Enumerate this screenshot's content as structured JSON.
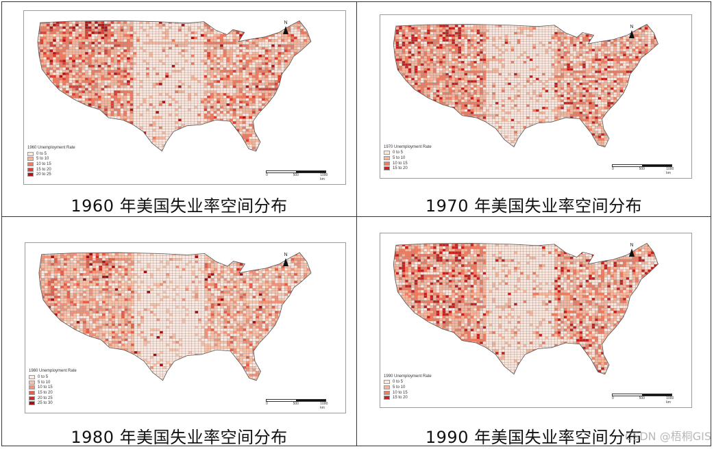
{
  "panels": [
    {
      "caption": "1960 年美国失业率空间分布",
      "legend_title": "1960 Unemployment Rate",
      "classes": [
        "0 to 5",
        "5 to 10",
        "10 to 15",
        "15 to 20",
        "20 to 25"
      ],
      "class_colors": [
        "#fde6db",
        "#f7b59c",
        "#ef7b60",
        "#de3f31",
        "#b31418"
      ],
      "north_label": "N",
      "scale_labels": [
        "0",
        "500",
        "1000 km"
      ]
    },
    {
      "caption": "1970 年美国失业率空间分布",
      "legend_title": "1970 Unemployment Rate",
      "classes": [
        "0 to 5",
        "5 to 10",
        "10 to 15",
        "15 to 20"
      ],
      "class_colors": [
        "#fde6db",
        "#f7b59c",
        "#ef7b60",
        "#c8201e"
      ],
      "north_label": "N",
      "scale_labels": [
        "0",
        "500",
        "1000 km"
      ]
    },
    {
      "caption": "1980 年美国失业率空间分布",
      "legend_title": "1980 Unemployment Rate",
      "classes": [
        "0 to 5",
        "5 to 10",
        "10 to 15",
        "15 to 20",
        "20 to 25",
        "25 to 30"
      ],
      "class_colors": [
        "#fde9df",
        "#f9c2a9",
        "#f3937a",
        "#e85d48",
        "#d02a22",
        "#a50f15"
      ],
      "north_label": "N",
      "scale_labels": [
        "0",
        "500",
        "1000 km"
      ]
    },
    {
      "caption": "1990 年美国失业率空间分布",
      "legend_title": "1990 Unemployment Rate",
      "classes": [
        "0 to 5",
        "5 to 10",
        "10 to 15",
        "15 to 20"
      ],
      "class_colors": [
        "#fde6db",
        "#f7b59c",
        "#ef7b60",
        "#c8201e"
      ],
      "north_label": "N",
      "scale_labels": [
        "0",
        "500",
        "1000 km"
      ]
    }
  ],
  "watermark": "CSDN @梧桐GIS"
}
